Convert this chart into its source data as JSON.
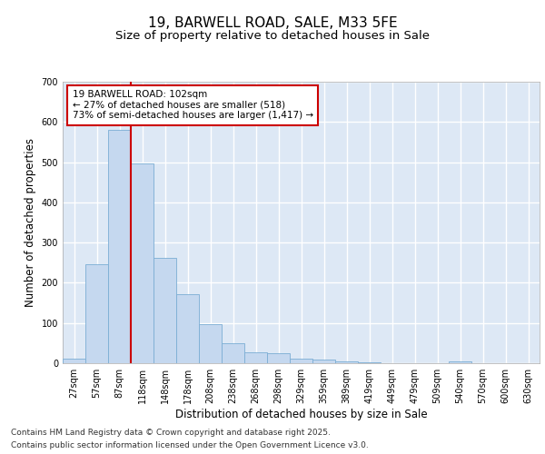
{
  "title_line1": "19, BARWELL ROAD, SALE, M33 5FE",
  "title_line2": "Size of property relative to detached houses in Sale",
  "xlabel": "Distribution of detached houses by size in Sale",
  "ylabel": "Number of detached properties",
  "categories": [
    "27sqm",
    "57sqm",
    "87sqm",
    "118sqm",
    "148sqm",
    "178sqm",
    "208sqm",
    "238sqm",
    "268sqm",
    "298sqm",
    "329sqm",
    "359sqm",
    "389sqm",
    "419sqm",
    "449sqm",
    "479sqm",
    "509sqm",
    "540sqm",
    "570sqm",
    "600sqm",
    "630sqm"
  ],
  "values": [
    12,
    247,
    580,
    497,
    262,
    172,
    96,
    50,
    27,
    25,
    12,
    10,
    5,
    2,
    0,
    0,
    0,
    4,
    0,
    0,
    0
  ],
  "bar_color": "#c5d8ef",
  "bar_edge_color": "#7badd4",
  "vline_x_index": 2.5,
  "vline_color": "#cc0000",
  "annotation_text": "19 BARWELL ROAD: 102sqm\n← 27% of detached houses are smaller (518)\n73% of semi-detached houses are larger (1,417) →",
  "annotation_box_color": "#ffffff",
  "annotation_box_edge_color": "#cc0000",
  "ylim": [
    0,
    700
  ],
  "yticks": [
    0,
    100,
    200,
    300,
    400,
    500,
    600,
    700
  ],
  "background_color": "#dde8f5",
  "grid_color": "#ffffff",
  "footer_line1": "Contains HM Land Registry data © Crown copyright and database right 2025.",
  "footer_line2": "Contains public sector information licensed under the Open Government Licence v3.0.",
  "title_fontsize": 11,
  "subtitle_fontsize": 9.5,
  "axis_label_fontsize": 8.5,
  "tick_fontsize": 7,
  "annotation_fontsize": 7.5,
  "footer_fontsize": 6.5
}
